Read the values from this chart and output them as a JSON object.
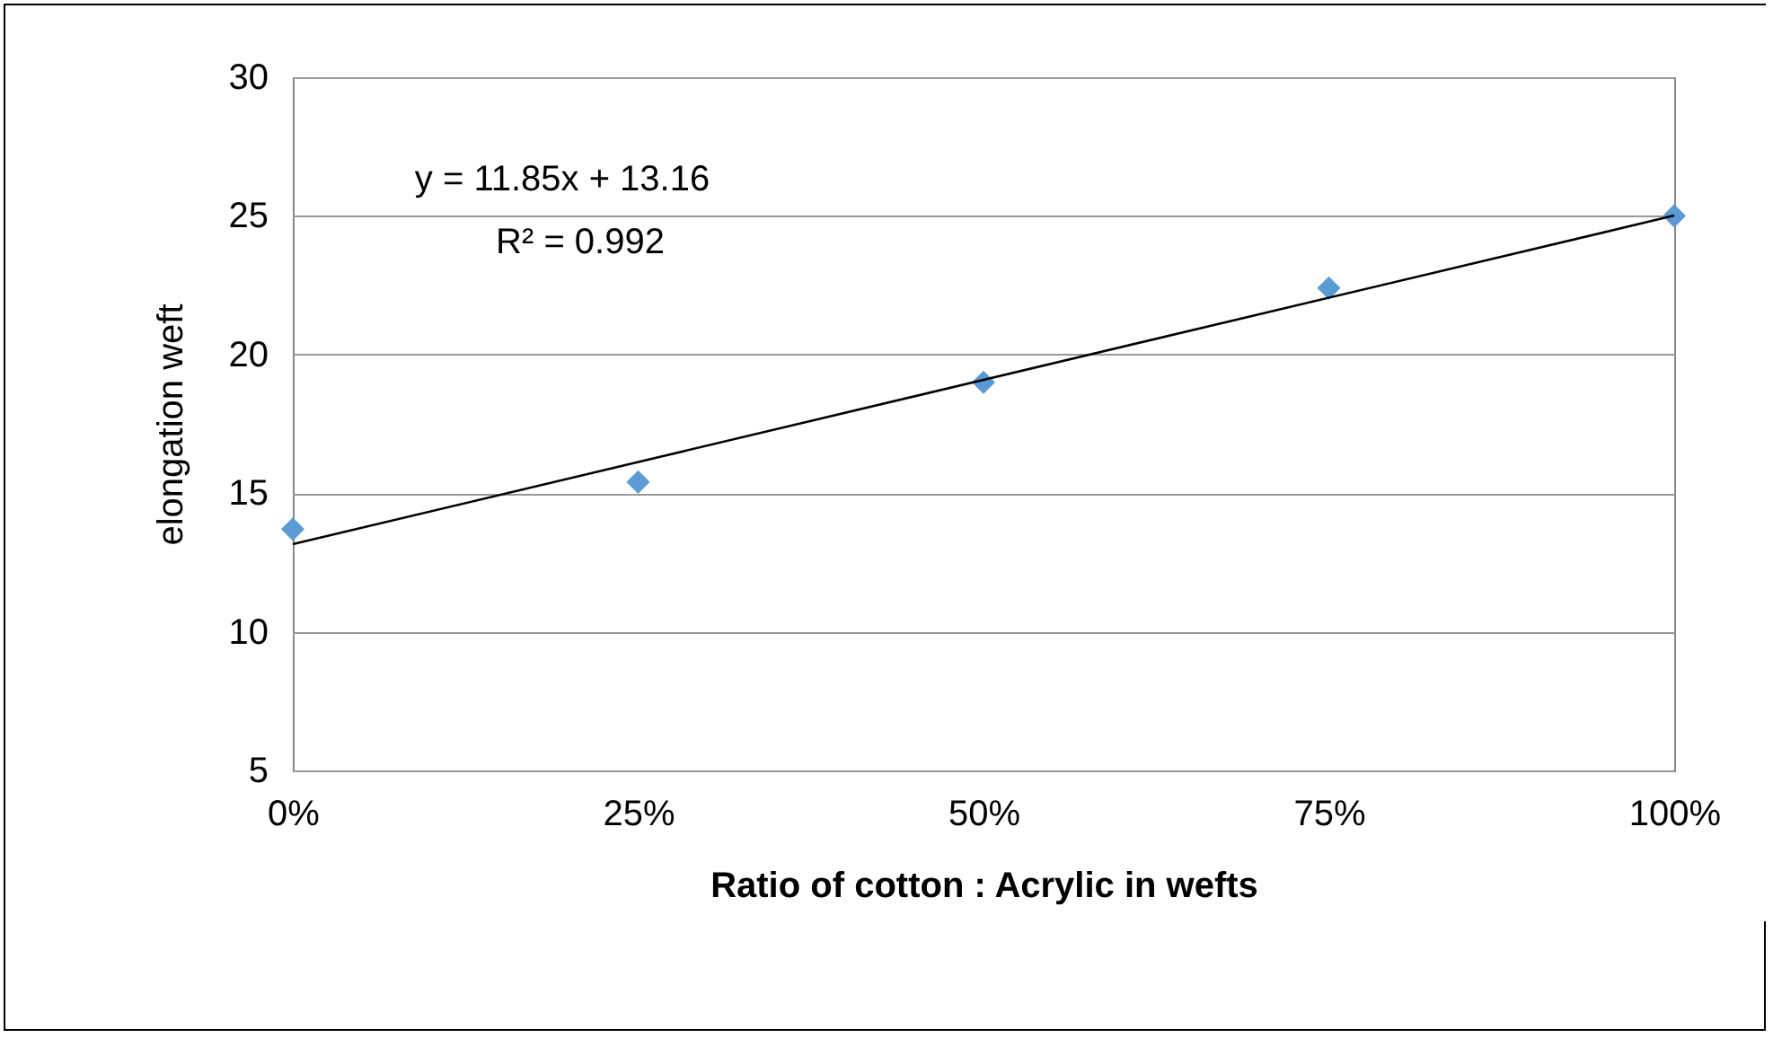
{
  "chart_data": {
    "type": "scatter",
    "xlabel": "Ratio of cotton : Acrylic in wefts",
    "ylabel": "elongation weft",
    "x": [
      0,
      0.25,
      0.5,
      0.75,
      1
    ],
    "series": [
      {
        "color": "#5b9bd5",
        "marker": "diamond",
        "values": [
          13.7,
          15.4,
          19.0,
          22.4,
          25.0
        ]
      },
      {
        "type": "line",
        "color": "#000000",
        "marker": "none",
        "line_style": "solid",
        "x": [
          0,
          1
        ],
        "values": [
          13.16,
          25.01
        ]
      }
    ],
    "xlim": [
      0,
      1
    ],
    "xticks": [
      {
        "value": 0,
        "label": "0%"
      },
      {
        "value": 0.25,
        "label": "25%"
      },
      {
        "value": 0.5,
        "label": "50%"
      },
      {
        "value": 0.75,
        "label": "75%"
      },
      {
        "value": 1,
        "label": "100%"
      }
    ],
    "ylim": [
      5,
      30
    ],
    "yticks": [
      5,
      10,
      15,
      20,
      25,
      30
    ],
    "grid": "y",
    "annotations": [
      "y = 11.85x + 13.16",
      "R² = 0.992"
    ]
  }
}
